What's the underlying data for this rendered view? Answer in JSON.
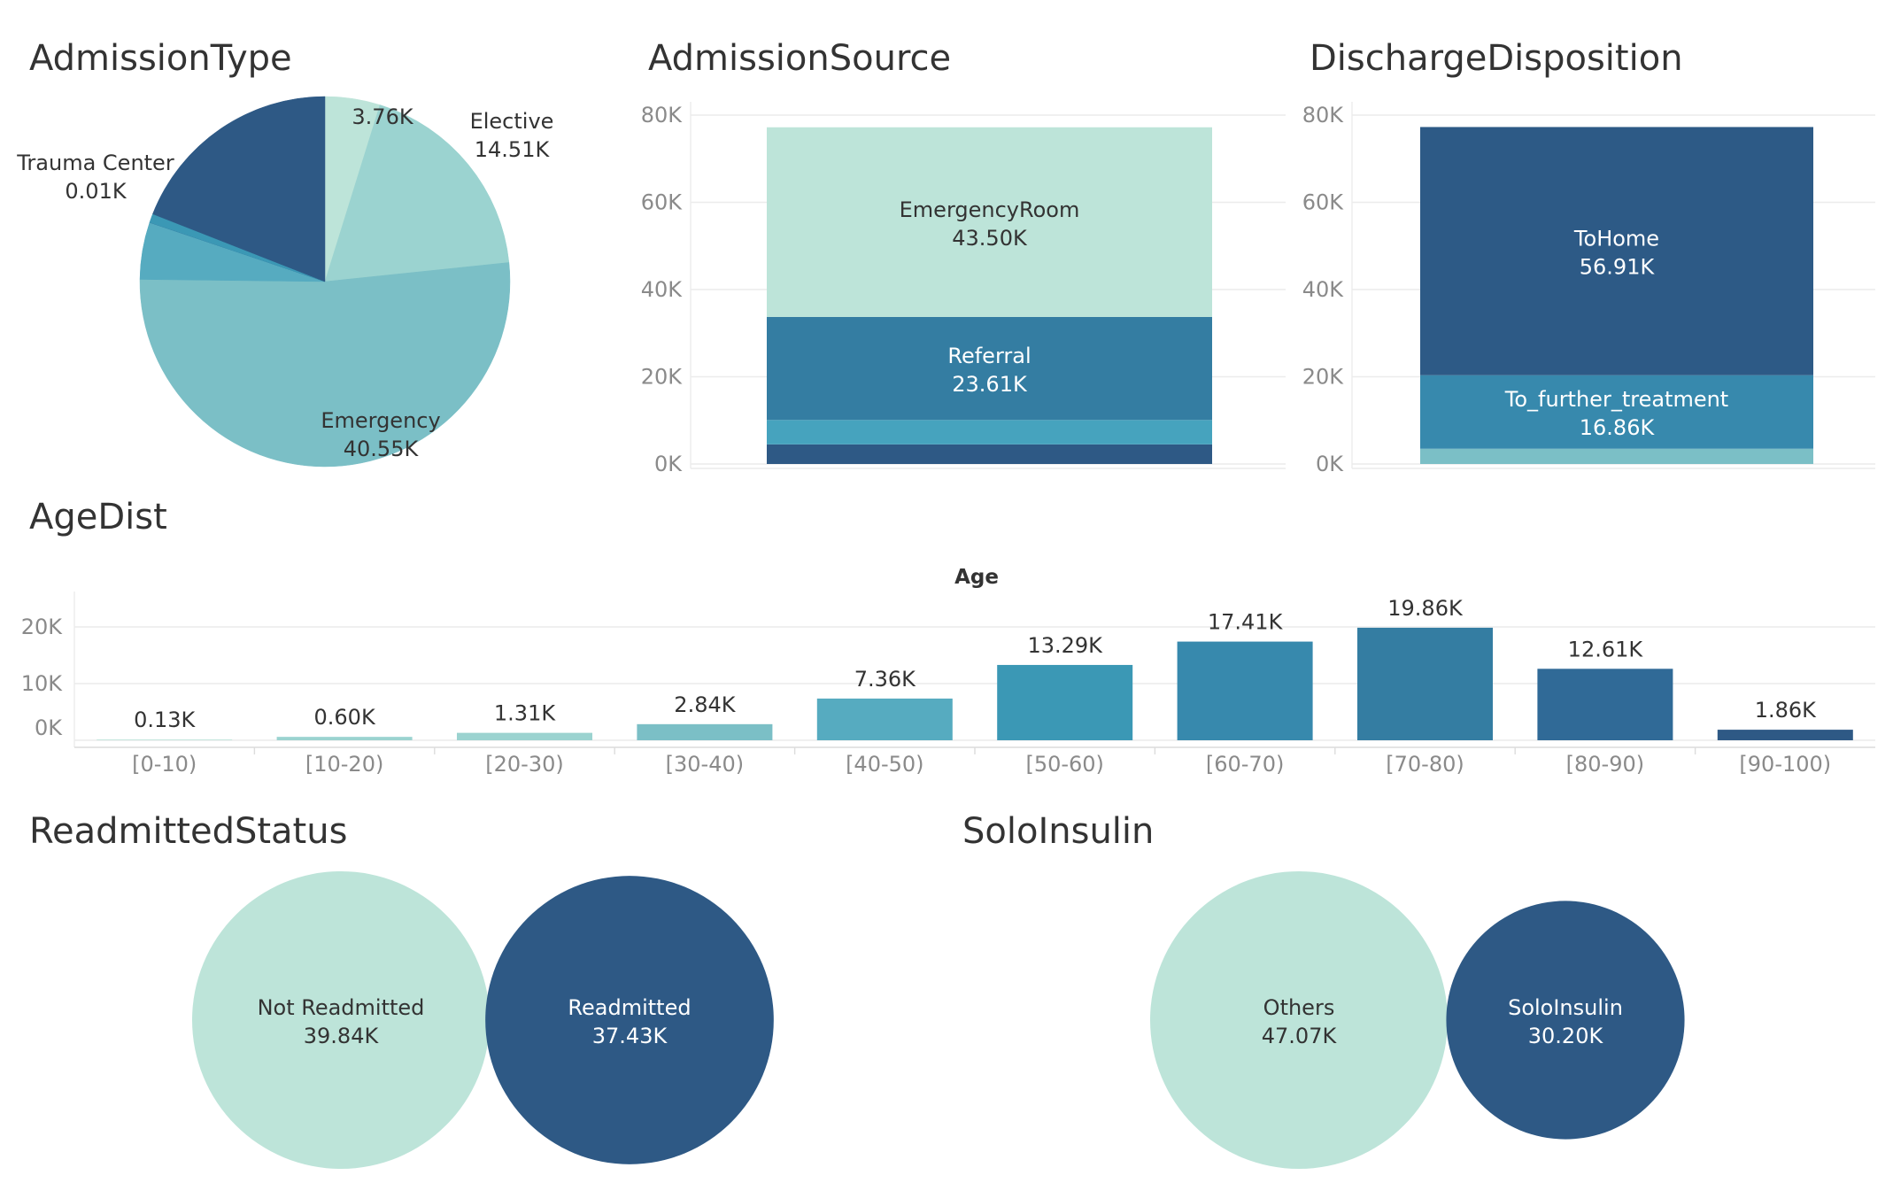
{
  "colors": {
    "c1": "#bde4d9",
    "c2": "#9bd3d0",
    "c3": "#7bbfc6",
    "c4": "#56abc0",
    "c5": "#46a3be",
    "c6": "#3b98b5",
    "c7": "#3789ad",
    "c8": "#347da2",
    "c9": "#306a97",
    "c10": "#2e5985",
    "c11": "#2d5a86"
  },
  "chart_data": [
    {
      "id": "admission_type",
      "type": "pie",
      "title": "AdmissionType",
      "slices": [
        {
          "label": "",
          "value": 3.76,
          "value_label": "3.76K"
        },
        {
          "label": "Elective",
          "value": 14.51,
          "value_label": "14.51K"
        },
        {
          "label": "Emergency",
          "value": 40.55,
          "value_label": "40.55K"
        },
        {
          "label": "",
          "value": 3.9,
          "value_label": ""
        },
        {
          "label": "Trauma Center",
          "value": 0.01,
          "value_label": "0.01K"
        },
        {
          "label": "",
          "value": 0.6,
          "value_label": ""
        },
        {
          "label": "",
          "value": 14.9,
          "value_label": ""
        }
      ]
    },
    {
      "id": "admission_source",
      "type": "bar",
      "stacked": true,
      "title": "AdmissionSource",
      "ylim": [
        0,
        80
      ],
      "yticks": [
        "0K",
        "20K",
        "40K",
        "60K",
        "80K"
      ],
      "segments": [
        {
          "label": "",
          "value": 4.5,
          "value_label": ""
        },
        {
          "label": "",
          "value": 5.6,
          "value_label": ""
        },
        {
          "label": "Referral",
          "value": 23.61,
          "value_label": "23.61K"
        },
        {
          "label": "EmergencyRoom",
          "value": 43.5,
          "value_label": "43.50K"
        }
      ]
    },
    {
      "id": "discharge_disposition",
      "type": "bar",
      "stacked": true,
      "title": "DischargeDisposition",
      "ylim": [
        0,
        80
      ],
      "yticks": [
        "0K",
        "20K",
        "40K",
        "60K",
        "80K"
      ],
      "segments": [
        {
          "label": "",
          "value": 3.5,
          "value_label": ""
        },
        {
          "label": "To_further_treatment",
          "value": 16.86,
          "value_label": "16.86K"
        },
        {
          "label": "ToHome",
          "value": 56.91,
          "value_label": "56.91K"
        }
      ]
    },
    {
      "id": "age_dist",
      "type": "bar",
      "title": "AgeDist",
      "xlabel": "Age",
      "ylim": [
        0,
        20
      ],
      "yticks": [
        "0K",
        "10K",
        "20K"
      ],
      "categories": [
        "[0-10)",
        "[10-20)",
        "[20-30)",
        "[30-40)",
        "[40-50)",
        "[50-60)",
        "[60-70)",
        "[70-80)",
        "[80-90)",
        "[90-100)"
      ],
      "values": [
        0.13,
        0.6,
        1.31,
        2.84,
        7.36,
        13.29,
        17.41,
        19.86,
        12.61,
        1.86
      ],
      "value_labels": [
        "0.13K",
        "0.60K",
        "1.31K",
        "2.84K",
        "7.36K",
        "13.29K",
        "17.41K",
        "19.86K",
        "12.61K",
        "1.86K"
      ]
    },
    {
      "id": "readmitted_status",
      "type": "bubble",
      "title": "ReadmittedStatus",
      "items": [
        {
          "label": "Not Readmitted",
          "value": 39.84,
          "value_label": "39.84K"
        },
        {
          "label": "Readmitted",
          "value": 37.43,
          "value_label": "37.43K"
        }
      ]
    },
    {
      "id": "solo_insulin",
      "type": "bubble",
      "title": "SoloInsulin",
      "items": [
        {
          "label": "Others",
          "value": 47.07,
          "value_label": "47.07K"
        },
        {
          "label": "SoloInsulin",
          "value": 30.2,
          "value_label": "30.20K"
        }
      ]
    }
  ]
}
